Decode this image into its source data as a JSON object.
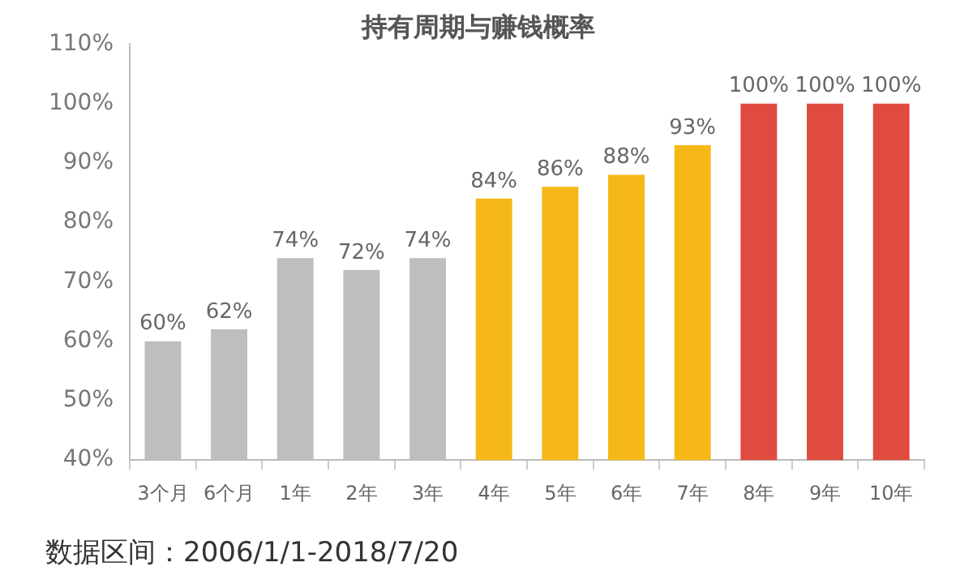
{
  "chart_data": {
    "type": "bar",
    "title": "持有周期与赚钱概率",
    "categories": [
      "3个月",
      "6个月",
      "1年",
      "2年",
      "3年",
      "4年",
      "5年",
      "6年",
      "7年",
      "8年",
      "9年",
      "10年"
    ],
    "values": [
      60,
      62,
      74,
      72,
      74,
      84,
      86,
      88,
      93,
      100,
      100,
      100
    ],
    "value_labels": [
      "60%",
      "62%",
      "74%",
      "72%",
      "74%",
      "84%",
      "86%",
      "88%",
      "93%",
      "100%",
      "100%",
      "100%"
    ],
    "colors": [
      "#bfbebe",
      "#bfbebe",
      "#bfbebe",
      "#bfbebe",
      "#bfbebe",
      "#f5b817",
      "#f5b817",
      "#f5b817",
      "#f5b817",
      "#e04b3f",
      "#e04b3f",
      "#e04b3f"
    ],
    "ylim": [
      40,
      110
    ],
    "yticks": [
      {
        "value": 40,
        "label": "40%"
      },
      {
        "value": 50,
        "label": "50%"
      },
      {
        "value": 60,
        "label": "60%"
      },
      {
        "value": 70,
        "label": "70%"
      },
      {
        "value": 80,
        "label": "80%"
      },
      {
        "value": 90,
        "label": "90%"
      },
      {
        "value": 100,
        "label": "100%"
      },
      {
        "value": 110,
        "label": "110%"
      }
    ],
    "grid": false,
    "legend": false,
    "annotations": [
      "数据区间：2006/1/1-2018/7/20"
    ]
  }
}
